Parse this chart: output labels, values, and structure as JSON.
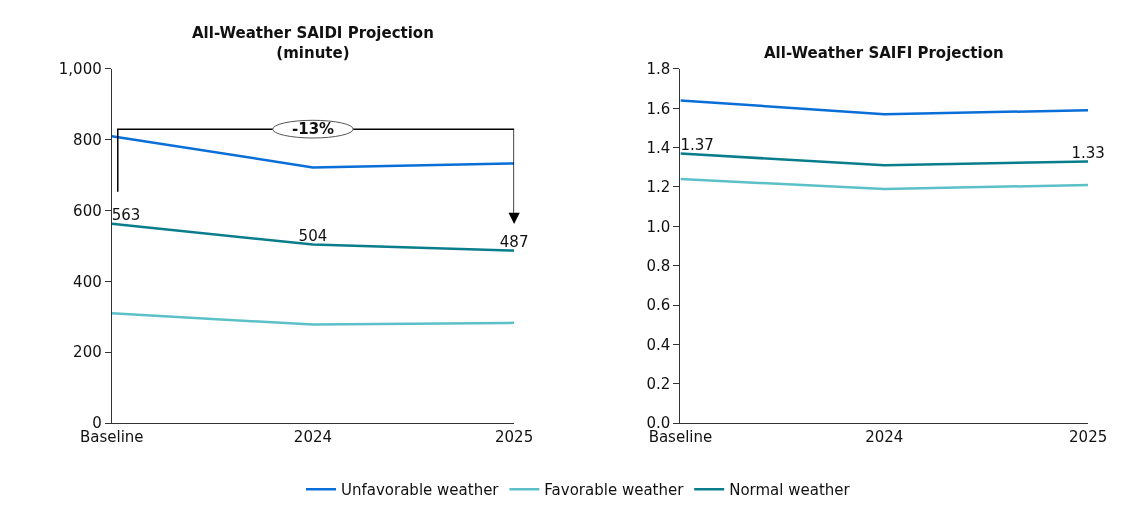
{
  "chart_data": [
    {
      "type": "line",
      "title": "All-Weather SAIDI Projection\n(minute)",
      "categories": [
        "Baseline",
        "2024",
        "2025"
      ],
      "series": [
        {
          "name": "Unfavorable weather",
          "color": "#0a6ed8",
          "values": [
            810,
            722,
            733
          ]
        },
        {
          "name": "Favorable weather",
          "color": "#5bc0c8",
          "values": [
            310,
            278,
            283
          ]
        },
        {
          "name": "Normal weather",
          "color": "#0a7d8c",
          "values": [
            563,
            504,
            487
          ],
          "value_labels": [
            "563",
            "504",
            "487"
          ]
        }
      ],
      "ylim": [
        0,
        1000
      ],
      "yticks": [
        0,
        200,
        400,
        600,
        800,
        {
          "value": 1000,
          "label": "1,000"
        }
      ],
      "legend": "bottom",
      "annotations": [
        "-13%"
      ]
    },
    {
      "type": "line",
      "title": "All-Weather SAIFI Projection",
      "categories": [
        "Baseline",
        "2024",
        "2025"
      ],
      "series": [
        {
          "name": "Unfavorable weather",
          "color": "#0a6ed8",
          "values": [
            1.64,
            1.57,
            1.59
          ]
        },
        {
          "name": "Favorable weather",
          "color": "#5bc0c8",
          "values": [
            1.24,
            1.19,
            1.21
          ]
        },
        {
          "name": "Normal weather",
          "color": "#0a7d8c",
          "values": [
            1.37,
            1.31,
            1.33
          ],
          "value_labels": [
            "1.37",
            null,
            "1.33"
          ]
        }
      ],
      "ylim": [
        0,
        1.8
      ],
      "yticks": [
        {
          "value": 0,
          "label": "0.0"
        },
        0.2,
        0.4,
        0.6,
        0.8,
        {
          "value": 1,
          "label": "1.0"
        },
        1.2,
        1.4,
        1.6,
        1.8
      ],
      "legend": "bottom"
    }
  ]
}
